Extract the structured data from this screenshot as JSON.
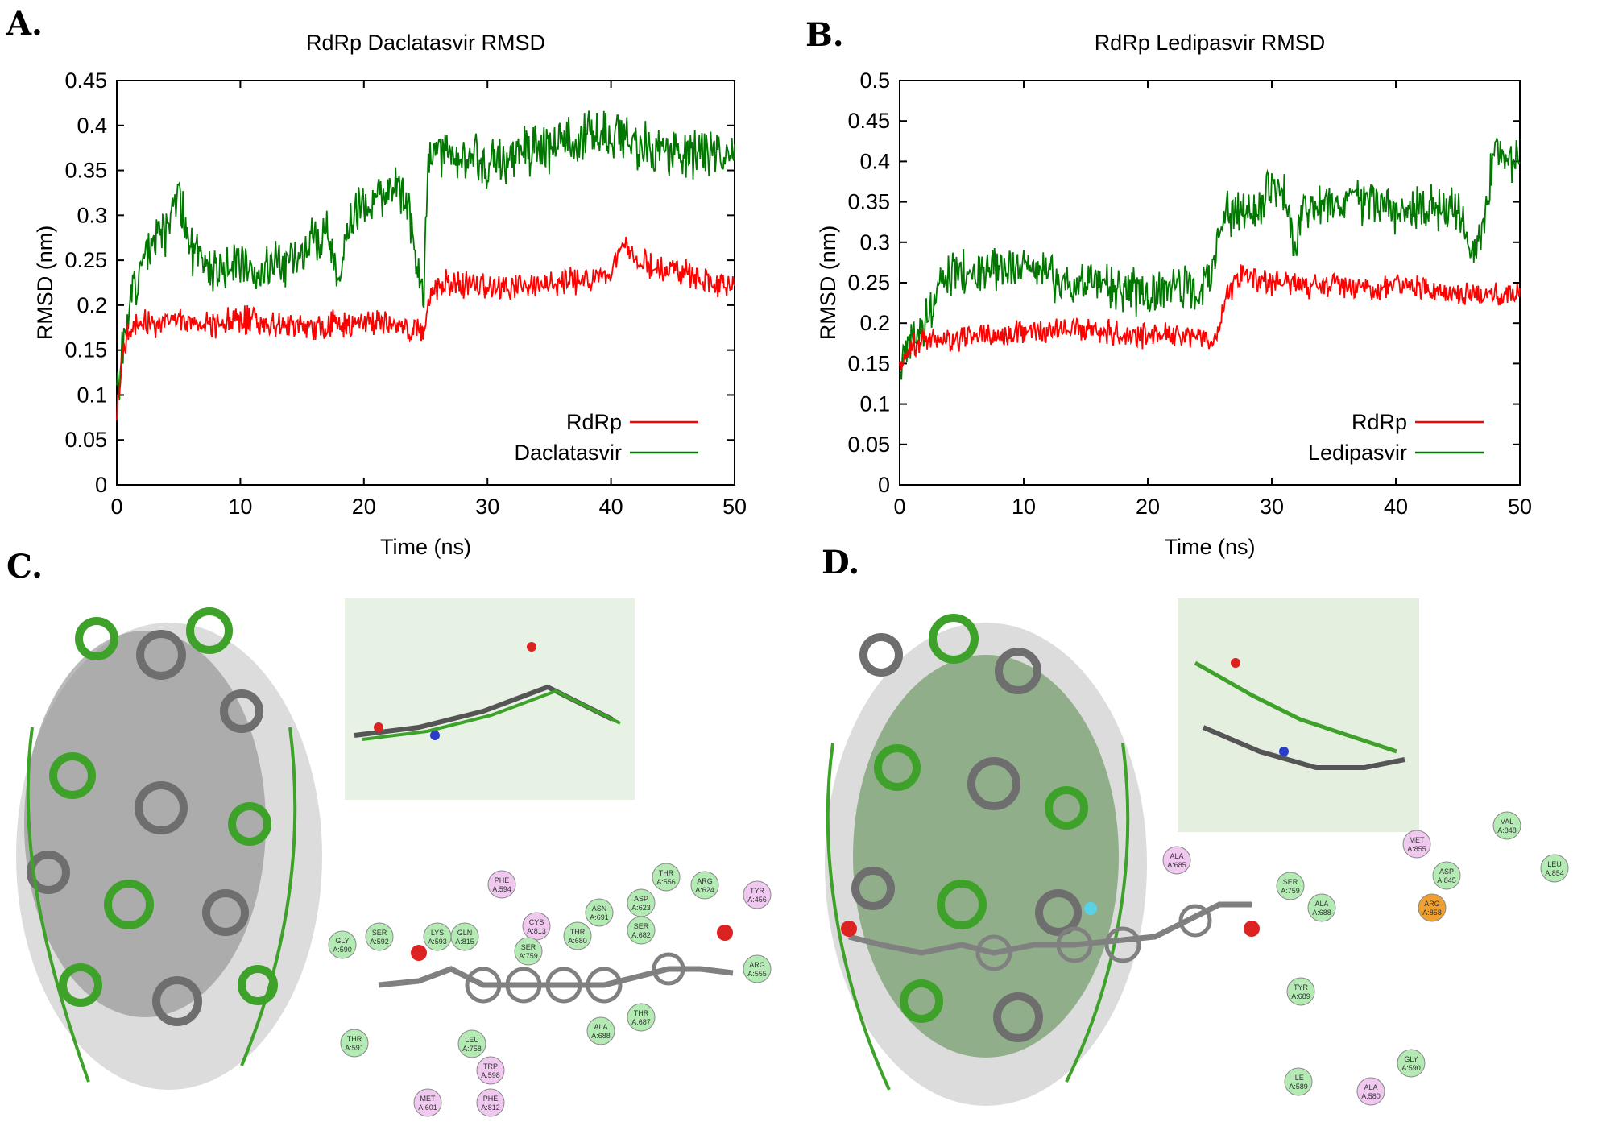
{
  "labels": {
    "a": "A.",
    "b": "B.",
    "c": "C.",
    "d": "D."
  },
  "colors": {
    "rdrp": "#ff0000",
    "ligand": "#007800",
    "protein_green": "#3ea22a",
    "protein_gray": "#6e6e6e"
  },
  "chart_data": [
    {
      "type": "line",
      "title": "RdRp Daclatasvir RMSD",
      "xlabel": "Time (ns)",
      "ylabel": "RMSD (nm)",
      "xlim": [
        0,
        50
      ],
      "ylim": [
        0,
        0.45
      ],
      "xticks": [
        "0",
        "10",
        "20",
        "30",
        "40",
        "50"
      ],
      "yticks": [
        "0",
        "0.05",
        "0.1",
        "0.15",
        "0.2",
        "0.25",
        "0.3",
        "0.35",
        "0.4",
        "0.45"
      ],
      "legend": "bottom-right",
      "series": [
        {
          "name": "RdRp",
          "color": "#ff0000",
          "x": [
            0,
            0.5,
            1,
            2,
            4,
            6,
            8,
            10,
            12,
            14,
            16,
            18,
            20,
            22,
            24,
            24.8,
            25.5,
            27,
            30,
            33,
            36,
            38,
            40,
            41,
            42,
            44,
            46,
            48,
            50
          ],
          "values": [
            0.09,
            0.15,
            0.17,
            0.18,
            0.18,
            0.18,
            0.18,
            0.185,
            0.18,
            0.18,
            0.175,
            0.18,
            0.18,
            0.18,
            0.175,
            0.17,
            0.215,
            0.225,
            0.22,
            0.22,
            0.225,
            0.23,
            0.235,
            0.27,
            0.25,
            0.24,
            0.235,
            0.225,
            0.225
          ]
        },
        {
          "name": "Daclatasvir",
          "color": "#007800",
          "x": [
            0,
            0.5,
            1,
            2,
            3,
            4,
            5,
            6,
            8,
            10,
            12,
            14,
            16,
            17,
            18,
            19,
            20,
            22,
            23,
            24,
            24.8,
            25.2,
            27,
            30,
            33,
            36,
            38,
            40,
            41,
            42,
            44,
            46,
            48,
            50
          ],
          "values": [
            0.1,
            0.15,
            0.2,
            0.25,
            0.27,
            0.28,
            0.33,
            0.26,
            0.24,
            0.25,
            0.24,
            0.25,
            0.27,
            0.29,
            0.23,
            0.3,
            0.31,
            0.33,
            0.33,
            0.28,
            0.2,
            0.37,
            0.365,
            0.36,
            0.37,
            0.38,
            0.39,
            0.39,
            0.385,
            0.375,
            0.37,
            0.37,
            0.37,
            0.375
          ]
        }
      ]
    },
    {
      "type": "line",
      "title": "RdRp Ledipasvir RMSD",
      "xlabel": "Time (ns)",
      "ylabel": "RMSD (nm)",
      "xlim": [
        0,
        50
      ],
      "ylim": [
        0,
        0.5
      ],
      "xticks": [
        "0",
        "10",
        "20",
        "30",
        "40",
        "50"
      ],
      "yticks": [
        "0",
        "0.05",
        "0.1",
        "0.15",
        "0.2",
        "0.25",
        "0.3",
        "0.35",
        "0.4",
        "0.45",
        "0.5"
      ],
      "legend": "bottom-right",
      "series": [
        {
          "name": "RdRp",
          "color": "#ff0000",
          "x": [
            0,
            0.5,
            1,
            2,
            4,
            6,
            8,
            10,
            12,
            14,
            16,
            18,
            20,
            22,
            24,
            25.5,
            26.5,
            27.5,
            30,
            33,
            36,
            38,
            40,
            42,
            44,
            46,
            48,
            50
          ],
          "values": [
            0.14,
            0.16,
            0.17,
            0.18,
            0.18,
            0.185,
            0.185,
            0.19,
            0.19,
            0.19,
            0.19,
            0.185,
            0.185,
            0.185,
            0.185,
            0.18,
            0.24,
            0.26,
            0.25,
            0.245,
            0.245,
            0.24,
            0.245,
            0.245,
            0.24,
            0.235,
            0.235,
            0.24
          ]
        },
        {
          "name": "Ledipasvir",
          "color": "#007800",
          "x": [
            0,
            0.5,
            1,
            2,
            3,
            4,
            6,
            8,
            10,
            12,
            14,
            16,
            18,
            20,
            22,
            24,
            25,
            26,
            27,
            29,
            30,
            31,
            31.8,
            32.5,
            35,
            38,
            40,
            42,
            44,
            45,
            46,
            47,
            48,
            49,
            50
          ],
          "values": [
            0.14,
            0.16,
            0.18,
            0.2,
            0.24,
            0.26,
            0.26,
            0.27,
            0.27,
            0.255,
            0.25,
            0.25,
            0.24,
            0.235,
            0.245,
            0.24,
            0.26,
            0.33,
            0.34,
            0.34,
            0.37,
            0.36,
            0.29,
            0.34,
            0.35,
            0.35,
            0.34,
            0.345,
            0.34,
            0.34,
            0.29,
            0.32,
            0.42,
            0.4,
            0.4
          ]
        }
      ]
    }
  ],
  "molecules": {
    "c": {
      "residues": [
        "PHE A:594",
        "LYS A:593",
        "GLN A:815",
        "CYS A:813",
        "SER A:759",
        "THR A:680",
        "ASN A:691",
        "ASP A:623",
        "SER A:682",
        "THR A:556",
        "ARG A:624",
        "TYR A:456",
        "ARG A:555",
        "GLY A:590",
        "SER A:592",
        "THR A:591",
        "LEU A:758",
        "TRP A:598",
        "MET A:601",
        "PHE A:812",
        "ALA A:688",
        "THR A:687"
      ]
    },
    "d": {
      "residues": [
        "ALA A:685",
        "MET A:855",
        "VAL A:848",
        "LEU A:854",
        "SER A:759",
        "ALA A:688",
        "ASP A:845",
        "ARG A:858",
        "TYR A:689",
        "GLY A:590",
        "ILE A:589",
        "ALA A:580"
      ]
    }
  }
}
